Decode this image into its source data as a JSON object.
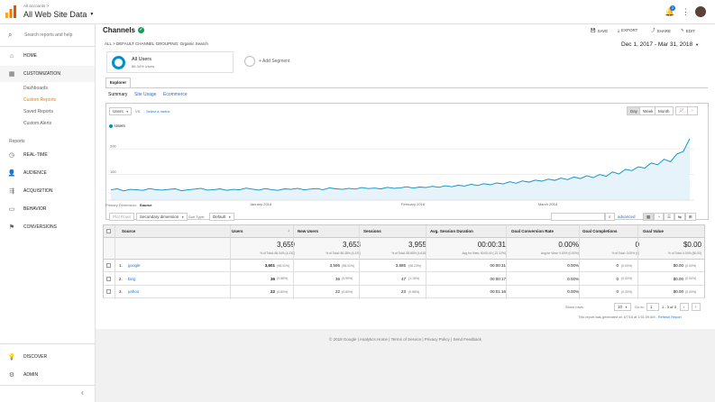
{
  "header": {
    "breadcrumb": "All accounts >",
    "property": "All Web Site Data",
    "badge_count": "2"
  },
  "sidebar": {
    "search_placeholder": "Search reports and help",
    "home": "HOME",
    "customization": "CUSTOMIZATION",
    "custom_items": [
      "Dashboards",
      "Custom Reports",
      "Saved Reports",
      "Custom Alerts"
    ],
    "reports_heading": "Reports",
    "reports": [
      "REAL-TIME",
      "AUDIENCE",
      "ACQUISITION",
      "BEHAVIOR",
      "CONVERSIONS"
    ],
    "discover": "DISCOVER",
    "admin": "ADMIN"
  },
  "report": {
    "title": "Channels",
    "actions": [
      "SAVE",
      "EXPORT",
      "SHARE",
      "EDIT"
    ],
    "filter": "ALL  >  DEFAULT CHANNEL GROUPING: Organic Search",
    "date_range": "Dec 1, 2017 - Mar 31, 2018",
    "segment_name": "All Users",
    "segment_pct": "86.34% Users",
    "add_segment": "+ Add Segment",
    "explorer_tab": "Explorer",
    "subtabs": [
      "Summary",
      "Site Usage",
      "Ecommerce"
    ],
    "metric_select": "Users",
    "vs": "VS.",
    "select_metric": "Select a metric",
    "granularity": [
      "Day",
      "Week",
      "Month"
    ],
    "legend": "Users"
  },
  "chart_data": {
    "type": "line",
    "series": [
      {
        "name": "Users",
        "values": [
          40,
          44,
          36,
          42,
          40,
          38,
          45,
          41,
          39,
          42,
          44,
          37,
          40,
          43,
          46,
          39,
          41,
          44,
          38,
          42,
          40,
          47,
          43,
          39,
          45,
          41,
          38,
          44,
          42,
          46,
          40,
          43,
          45,
          41,
          48,
          44,
          42,
          46,
          43,
          49,
          45,
          47,
          44,
          50,
          46,
          48,
          52,
          47,
          51,
          49,
          54,
          50,
          56,
          52,
          58,
          55,
          62,
          57,
          64,
          60,
          67,
          63,
          72,
          66,
          75,
          70,
          78,
          74,
          82,
          77,
          86,
          80,
          90,
          84,
          95,
          88,
          100,
          93,
          110,
          102,
          120,
          115,
          130,
          125,
          145,
          138,
          160,
          150,
          180,
          190,
          240
        ]
      }
    ],
    "x_labels": [
      "January 2018",
      "February 2018",
      "March 2018"
    ],
    "y_ticks": [
      100,
      200
    ],
    "ylim": [
      0,
      250
    ]
  },
  "table": {
    "primary_dimension_label": "Primary Dimension:",
    "primary_dimension": "Source",
    "plot_rows": "Plot Rows",
    "secondary_dimension": "Secondary dimension",
    "sort_type_label": "Sort Type:",
    "sort_type": "Default",
    "advanced": "advanced",
    "headers": [
      "Source",
      "Users",
      "New Users",
      "Sessions",
      "Avg. Session Duration",
      "Goal Conversion Rate",
      "Goal Completions",
      "Goal Value"
    ],
    "totals": [
      "3,659",
      "3,653",
      "3,955",
      "00:00:31",
      "0.00%",
      "0",
      "$0.00"
    ],
    "totals_sub": [
      "% of Total: 86.34% (4,238)",
      "% of Total: 86.38% (4,229)",
      "% of Total: 85.65% (4,618)",
      "Avg for View: 00:00:40 (-21.12%)",
      "Avg for View: 0.00% (0.00%)",
      "% of Total: 0.00% (0)",
      "% of Total: 0.00% ($0.00)"
    ],
    "rows": [
      {
        "idx": "1.",
        "source": "google",
        "users": "3,601",
        "users_pct": "(98.41%)",
        "new": "3,595",
        "new_pct": "(98.41%)",
        "sessions": "3,885",
        "sessions_pct": "(98.23%)",
        "dur": "00:00:31",
        "conv": "0.00%",
        "comp": "0",
        "comp_pct": "(0.00%)",
        "val": "$0.00",
        "val_pct": "(0.00%)"
      },
      {
        "idx": "2.",
        "source": "bing",
        "users": "36",
        "users_pct": "(0.98%)",
        "new": "36",
        "new_pct": "(0.99%)",
        "sessions": "47",
        "sessions_pct": "(1.19%)",
        "dur": "00:00:17",
        "conv": "0.00%",
        "comp": "0",
        "comp_pct": "(0.00%)",
        "val": "$0.00",
        "val_pct": "(0.00%)"
      },
      {
        "idx": "3.",
        "source": "yahoo",
        "users": "22",
        "users_pct": "(0.60%)",
        "new": "22",
        "new_pct": "(0.60%)",
        "sessions": "23",
        "sessions_pct": "(0.58%)",
        "dur": "00:01:16",
        "conv": "0.00%",
        "comp": "0",
        "comp_pct": "(0.00%)",
        "val": "$0.00",
        "val_pct": "(0.00%)"
      }
    ],
    "show_rows_label": "Show rows:",
    "show_rows": "10",
    "goto_label": "Go to:",
    "goto": "1",
    "range": "1 - 3 of 3",
    "generated": "This report was generated on 4/7/18 at 1:51:09 AM -",
    "refresh": "Refresh Report"
  },
  "footer": {
    "text": "© 2018 Google | Analytics Home | Terms of Service | Privacy Policy | Send Feedback"
  },
  "colors": {
    "accent": "#f57c00",
    "line": "#058dc7",
    "selected": "#e65100"
  }
}
